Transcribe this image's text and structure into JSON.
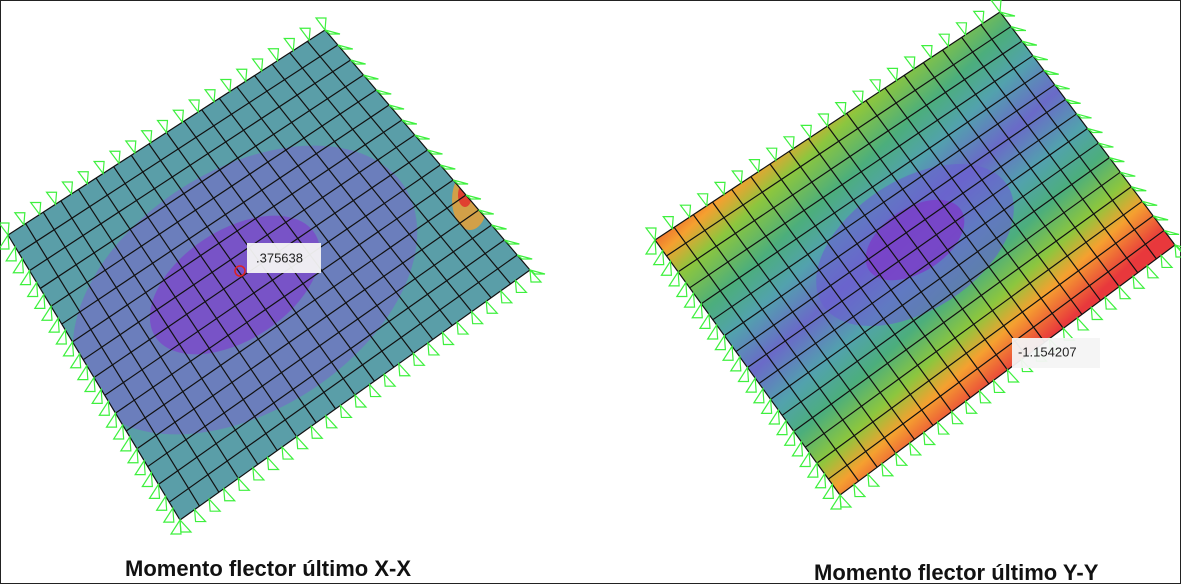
{
  "figures": [
    {
      "value_label": ".375638",
      "caption": "Momento flector último X-X"
    },
    {
      "value_label": "-1.154207",
      "caption": "Momento flector último Y-Y"
    }
  ]
}
